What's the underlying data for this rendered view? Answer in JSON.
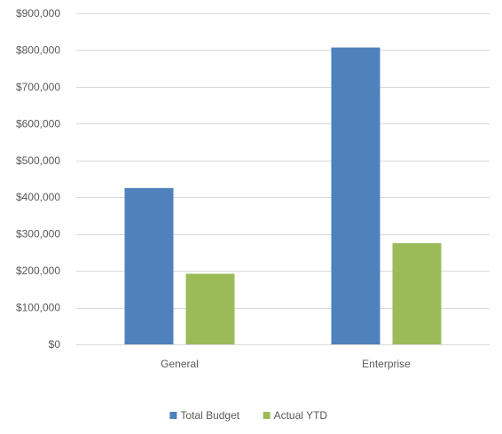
{
  "chart_data": {
    "type": "bar",
    "categories": [
      "General",
      "Enterprise"
    ],
    "series": [
      {
        "name": "Total Budget",
        "values": [
          425000,
          807000
        ],
        "color": "#4f81bd"
      },
      {
        "name": "Actual YTD",
        "values": [
          192000,
          275000
        ],
        "color": "#9bbb59"
      }
    ],
    "ylim": [
      0,
      900000
    ],
    "yticks": [
      0,
      100000,
      200000,
      300000,
      400000,
      500000,
      600000,
      700000,
      800000,
      900000
    ],
    "ytick_labels": [
      "$0",
      "$100,000",
      "$200,000",
      "$300,000",
      "$400,000",
      "$500,000",
      "$600,000",
      "$700,000",
      "$800,000",
      "$900,000"
    ],
    "grid": true,
    "legend_position": "bottom",
    "gridline_color": "#d9d9d9",
    "text_color": "#595959"
  }
}
